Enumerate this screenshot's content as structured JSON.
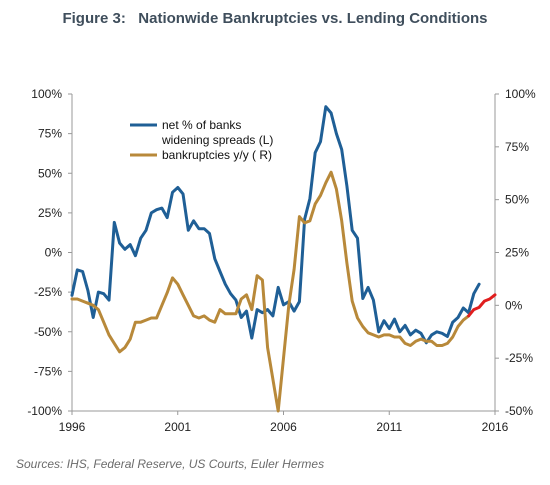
{
  "title": "Figure 3:   Nationwide Bankruptcies vs. Lending Conditions",
  "source": "Sources: IHS, Federal Reserve, US Courts, Euler Hermes",
  "chart_data": {
    "type": "line",
    "title": "Figure 3:   Nationwide Bankruptcies vs. Lending Conditions",
    "x_ticks": [
      "1996",
      "2001",
      "2006",
      "2011",
      "2016"
    ],
    "x_range": [
      1996,
      2016
    ],
    "y_left": {
      "range": [
        -100,
        100
      ],
      "ticks": [
        100,
        75,
        50,
        25,
        0,
        -25,
        -50,
        -75,
        -100
      ],
      "tick_labels": [
        "100%",
        "75%",
        "50%",
        "25%",
        "0%",
        "-25%",
        "-50%",
        "-75%",
        "-100%"
      ]
    },
    "y_right": {
      "range": [
        -50,
        100
      ],
      "ticks": [
        100,
        75,
        50,
        25,
        0,
        -25,
        -50
      ],
      "tick_labels": [
        "100%",
        "75%",
        "50%",
        "25%",
        "0%",
        "-25%",
        "-50%"
      ]
    },
    "grid": false,
    "legend_position": "top-left",
    "series": [
      {
        "name": "net % of banks widening spreads (L)",
        "legend_lines": [
          "net % of banks",
          "widening spreads (L)"
        ],
        "axis": "left",
        "color": "#1f5f96",
        "x": [
          1996.0,
          1996.25,
          1996.5,
          1996.75,
          1997.0,
          1997.25,
          1997.5,
          1997.75,
          1998.0,
          1998.25,
          1998.5,
          1998.75,
          1999.0,
          1999.25,
          1999.5,
          1999.75,
          2000.0,
          2000.25,
          2000.5,
          2000.75,
          2001.0,
          2001.25,
          2001.5,
          2001.75,
          2002.0,
          2002.25,
          2002.5,
          2002.75,
          2003.0,
          2003.25,
          2003.5,
          2003.75,
          2004.0,
          2004.25,
          2004.5,
          2004.75,
          2005.0,
          2005.25,
          2005.5,
          2005.75,
          2006.0,
          2006.25,
          2006.5,
          2006.75,
          2007.0,
          2007.25,
          2007.5,
          2007.75,
          2008.0,
          2008.25,
          2008.5,
          2008.75,
          2009.0,
          2009.25,
          2009.5,
          2009.75,
          2010.0,
          2010.25,
          2010.5,
          2010.75,
          2011.0,
          2011.25,
          2011.5,
          2011.75,
          2012.0,
          2012.25,
          2012.5,
          2012.75,
          2013.0,
          2013.25,
          2013.5,
          2013.75,
          2014.0,
          2014.25,
          2014.5,
          2014.75,
          2015.0,
          2015.25
        ],
        "y": [
          -27,
          -11,
          -12,
          -24,
          -41,
          -25,
          -26,
          -30,
          19,
          6,
          2,
          5,
          -2,
          9,
          14,
          25,
          27,
          28,
          22,
          38,
          41,
          37,
          14,
          20,
          15,
          15,
          12,
          -4,
          -12,
          -20,
          -26,
          -30,
          -41,
          -37,
          -54,
          -36,
          -38,
          -36,
          -40,
          -22,
          -33,
          -31,
          -37,
          -31,
          21,
          34,
          63,
          70,
          92,
          88,
          75,
          65,
          42,
          14,
          9,
          -29,
          -22,
          -30,
          -50,
          -43,
          -48,
          -42,
          -50,
          -46,
          -52,
          -49,
          -51,
          -57,
          -52,
          -50,
          -51,
          -53,
          -44,
          -41,
          -35,
          -38,
          -26,
          -20
        ]
      },
      {
        "name": "bankruptcies y/y ( R)",
        "legend_lines": [
          "bankruptcies y/y ( R)"
        ],
        "axis": "right",
        "color": "#b8893a",
        "x": [
          1996.0,
          1996.25,
          1996.5,
          1996.75,
          1997.0,
          1997.25,
          1997.5,
          1997.75,
          1998.0,
          1998.25,
          1998.5,
          1998.75,
          1999.0,
          1999.25,
          1999.5,
          1999.75,
          2000.0,
          2000.25,
          2000.5,
          2000.75,
          2001.0,
          2001.25,
          2001.5,
          2001.75,
          2002.0,
          2002.25,
          2002.5,
          2002.75,
          2003.0,
          2003.25,
          2003.5,
          2003.75,
          2004.0,
          2004.25,
          2004.5,
          2004.75,
          2005.0,
          2005.25,
          2005.5,
          2005.75,
          2006.0,
          2006.25,
          2006.5,
          2006.75,
          2007.0,
          2007.25,
          2007.5,
          2007.75,
          2008.0,
          2008.25,
          2008.5,
          2008.75,
          2009.0,
          2009.25,
          2009.5,
          2009.75,
          2010.0,
          2010.25,
          2010.5,
          2010.75,
          2011.0,
          2011.25,
          2011.5,
          2011.75,
          2012.0,
          2012.25,
          2012.5,
          2012.75,
          2013.0,
          2013.25,
          2013.5,
          2013.75,
          2014.0,
          2014.25,
          2014.5,
          2014.75
        ],
        "y": [
          3,
          3,
          2,
          1,
          0,
          -2,
          -8,
          -14,
          -18,
          -22,
          -20,
          -16,
          -8,
          -8,
          -7,
          -6,
          -6,
          0,
          6,
          13,
          10,
          5,
          0,
          -5,
          -6,
          -5,
          -7,
          -8,
          -2,
          -4,
          -4,
          -4,
          3,
          5,
          -2,
          14,
          12,
          -20,
          -35,
          -50,
          -25,
          0,
          17,
          42,
          39,
          40,
          48,
          52,
          58,
          63,
          55,
          40,
          20,
          2,
          -6,
          -10,
          -13,
          -14,
          -15,
          -14,
          -14,
          -15,
          -15,
          -18,
          -19,
          -17,
          -16,
          -17,
          -17,
          -19,
          -19,
          -18,
          -15,
          -10,
          -7,
          -5
        ]
      },
      {
        "name": "",
        "axis": "right",
        "color": "#e01e1e",
        "x": [
          2014.75,
          2015.0,
          2015.25,
          2015.5,
          2015.75,
          2016.0
        ],
        "y": [
          -5,
          -2,
          -1,
          2,
          3,
          5
        ]
      }
    ]
  }
}
